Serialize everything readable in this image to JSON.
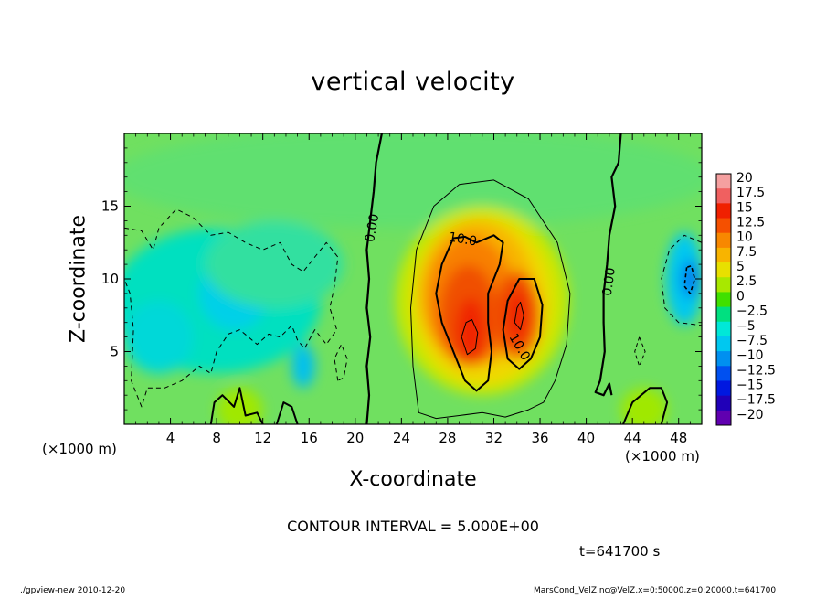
{
  "chart_data": {
    "type": "heatmap",
    "title": "vertical velocity",
    "xlabel": "X-coordinate",
    "ylabel": "Z-coordinate",
    "x_unit_label": "(×1000 m)",
    "x_unit_label_right": "(×1000 m)",
    "xlim": [
      0,
      50
    ],
    "ylim": [
      0,
      20
    ],
    "x_ticks": [
      4,
      8,
      12,
      16,
      20,
      24,
      28,
      32,
      36,
      40,
      44,
      48
    ],
    "y_ticks": [
      5,
      10,
      15
    ],
    "colorbar": {
      "levels": [
        20,
        17.5,
        15,
        12.5,
        10,
        7.5,
        5,
        2.5,
        0,
        -2.5,
        -5,
        -7.5,
        -10,
        -12.5,
        -15,
        -17.5,
        -20
      ],
      "labels": [
        "20",
        "17.5",
        "15",
        "12.5",
        "10",
        "7.5",
        "5",
        "2.5",
        "0",
        "−2.5",
        "−5",
        "−7.5",
        "−10",
        "−12.5",
        "−15",
        "−17.5",
        "−20"
      ],
      "colors": [
        "#f5a0a0",
        "#f06060",
        "#f02000",
        "#f55000",
        "#f88800",
        "#f8b400",
        "#e8e000",
        "#a8e800",
        "#40e000",
        "#00e080",
        "#00e8d8",
        "#00c8f0",
        "#0090f0",
        "#0050f0",
        "#0018e0",
        "#2000b8",
        "#6000b0"
      ]
    },
    "contour_labels": [
      {
        "text": "0.00",
        "x": 21.5,
        "z": 13.5
      },
      {
        "text": "10.0",
        "x": 29.3,
        "z": 12.7
      },
      {
        "text": "10.0",
        "x": 34.2,
        "z": 5.3
      },
      {
        "text": "0.00",
        "x": 42.0,
        "z": 9.8
      }
    ],
    "features": [
      {
        "kind": "updraft",
        "x_center": 31,
        "z_center": 7.5,
        "peak": 15
      },
      {
        "kind": "downdraft",
        "x_center": 8,
        "z_center": 8,
        "peak": -7.5
      },
      {
        "kind": "downdraft",
        "x_center": 49,
        "z_center": 10,
        "peak": -10
      }
    ]
  },
  "annotations": {
    "contour_interval": "CONTOUR INTERVAL = 5.000E+00",
    "time": "t=641700 s",
    "footer_left": "./gpview-new  2010-12-20",
    "footer_right": "MarsCond_VelZ.nc@VelZ,x=0:50000,z=0:20000,t=641700"
  }
}
